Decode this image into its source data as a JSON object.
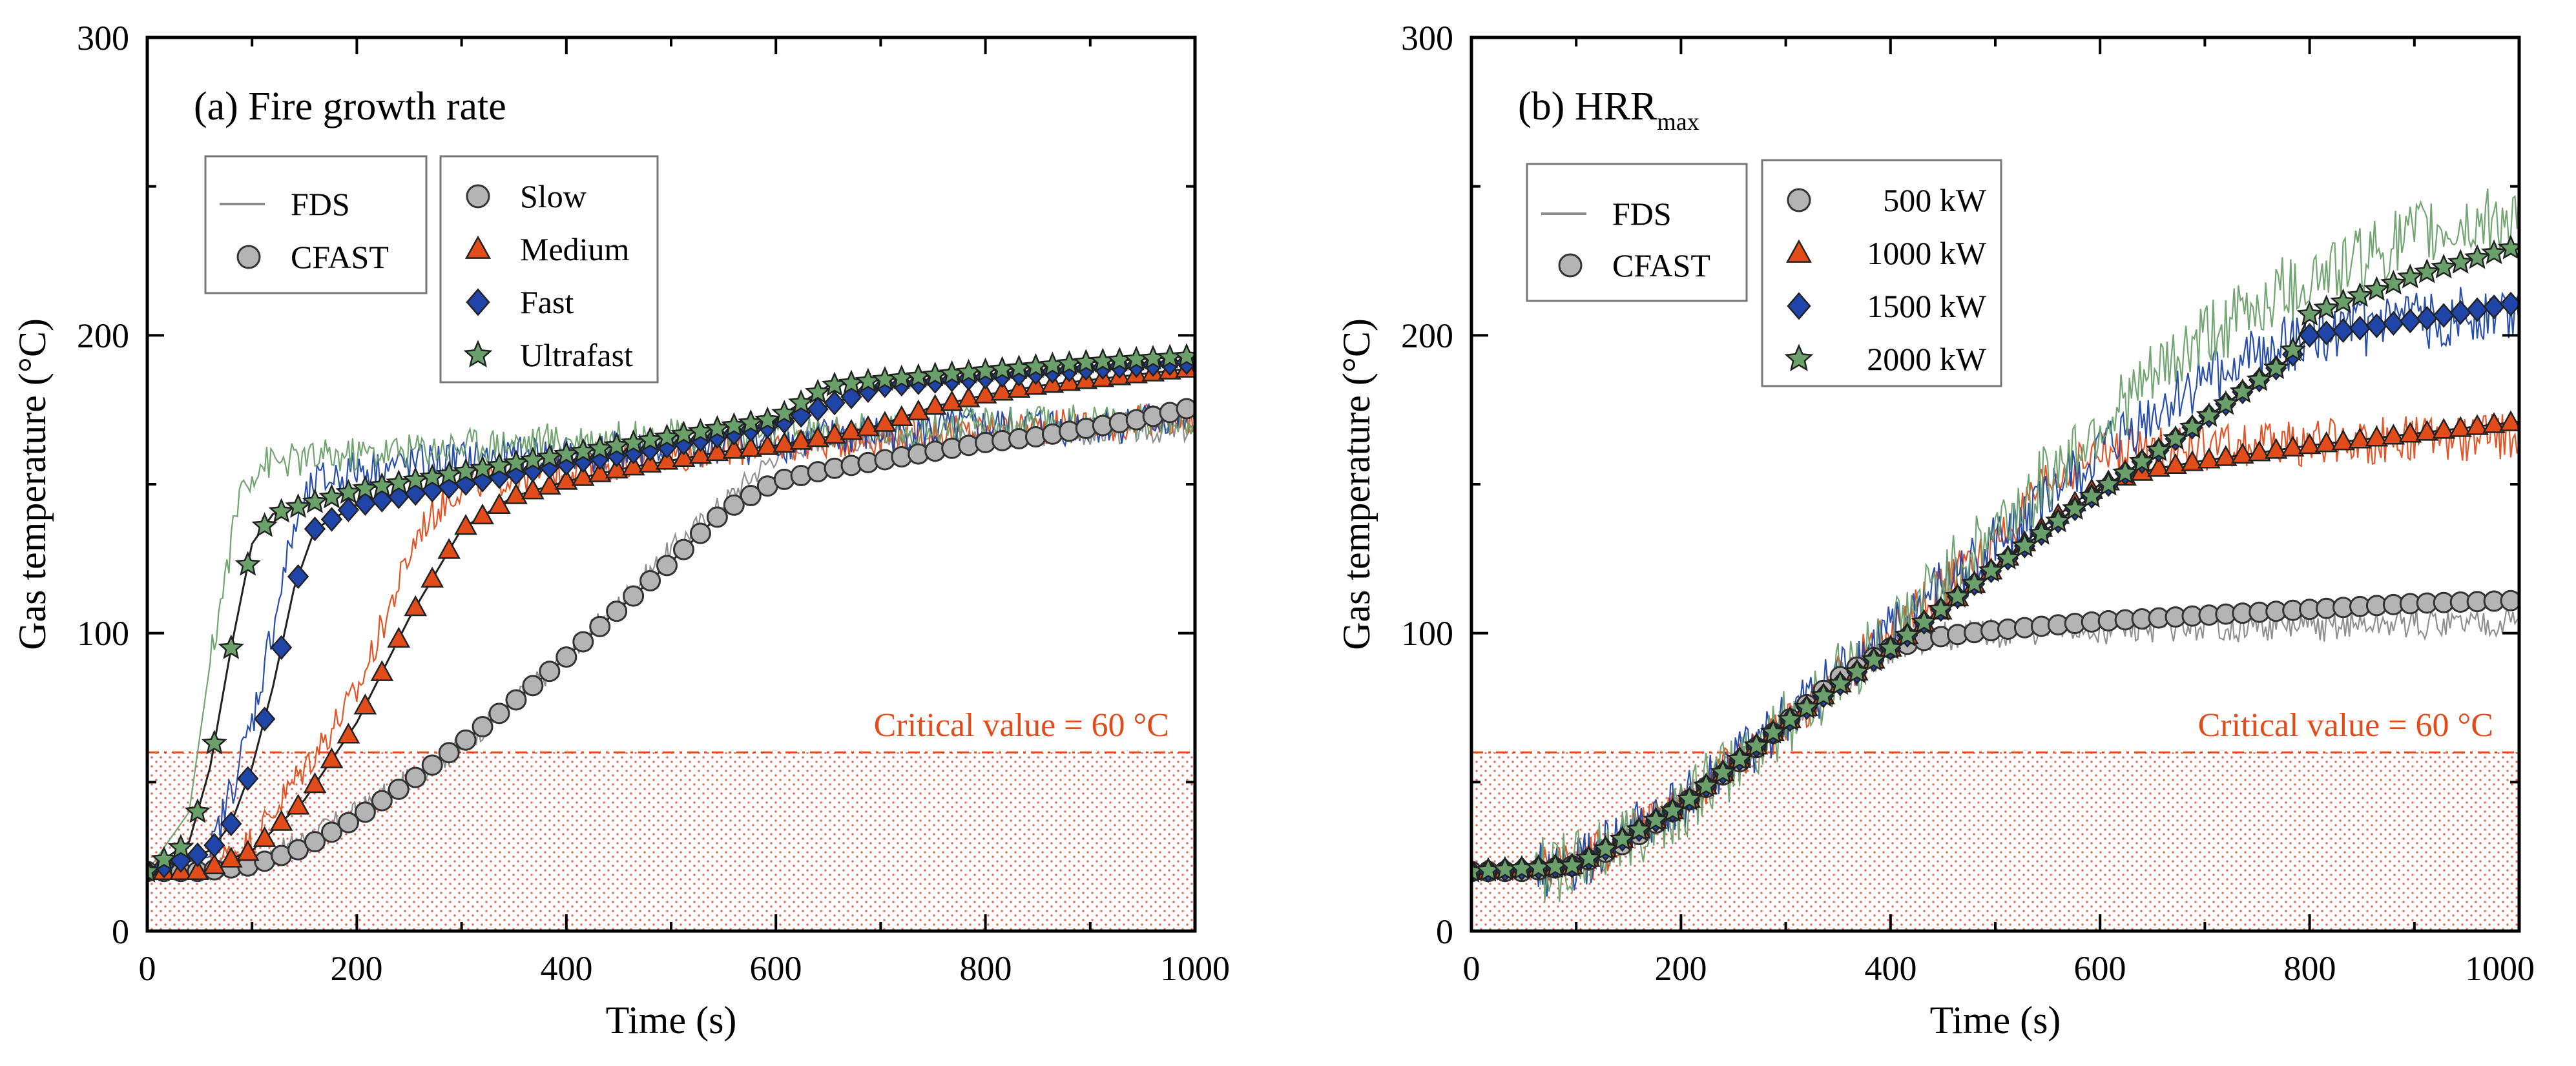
{
  "chart_data": [
    {
      "type": "line",
      "title": "(a) Fire growth rate",
      "xlabel": "Time (s)",
      "ylabel": "Gas temperature (°C)",
      "xlim": [
        0,
        1000
      ],
      "ylim": [
        0,
        300
      ],
      "xticks": [
        0,
        200,
        400,
        600,
        800,
        1000
      ],
      "yticks": [
        0,
        100,
        200,
        300
      ],
      "x_tick_labels": [
        "0",
        "200",
        "400",
        "600",
        "800",
        "1000"
      ],
      "y_tick_labels": [
        "0",
        "100",
        "200",
        "300"
      ],
      "critical_value": 60,
      "critical_label": "Critical value = 60 °C",
      "model_legend": [
        {
          "label": "FDS",
          "style": "line"
        },
        {
          "label": "CFAST",
          "style": "marker"
        }
      ],
      "series": [
        {
          "name": "Slow",
          "color": "#b4b4b4",
          "fds_color": "#8a8a8a",
          "marker": "circle",
          "noise": 4,
          "cfast_x": [
            0,
            50,
            100,
            150,
            200,
            250,
            300,
            350,
            400,
            450,
            500,
            550,
            600,
            650,
            700,
            750,
            800,
            850,
            900,
            950,
            1000
          ],
          "cfast_y": [
            20,
            20,
            22,
            28,
            38,
            50,
            63,
            77,
            92,
            108,
            124,
            141,
            151,
            155,
            158,
            161,
            164,
            166,
            169,
            172,
            176
          ],
          "fds_x": [
            0,
            100,
            200,
            300,
            400,
            500,
            600,
            640,
            700,
            800,
            900,
            1000
          ],
          "fds_y": [
            20,
            22,
            40,
            62,
            92,
            128,
            160,
            165,
            165,
            166,
            167,
            168
          ]
        },
        {
          "name": "Medium",
          "color": "#e24b1a",
          "fds_color": "#e24b1a",
          "marker": "triangle",
          "noise": 6,
          "cfast_x": [
            0,
            50,
            100,
            150,
            200,
            250,
            300,
            350,
            400,
            450,
            500,
            550,
            600,
            650,
            700,
            750,
            800,
            850,
            900,
            950,
            1000
          ],
          "cfast_y": [
            20,
            20,
            27,
            44,
            70,
            105,
            135,
            146,
            151,
            155,
            158,
            161,
            163,
            166,
            170,
            176,
            180,
            183,
            185,
            187,
            189
          ],
          "fds_x": [
            0,
            60,
            100,
            200,
            260,
            300,
            400,
            500,
            600,
            700,
            800,
            900,
            1000
          ],
          "fds_y": [
            20,
            22,
            30,
            80,
            135,
            150,
            155,
            160,
            163,
            166,
            168,
            170,
            172
          ]
        },
        {
          "name": "Fast",
          "color": "#1f45a8",
          "fds_color": "#1f45a8",
          "marker": "diamond",
          "noise": 7,
          "cfast_x": [
            0,
            60,
            80,
            100,
            120,
            140,
            160,
            200,
            300,
            400,
            500,
            600,
            700,
            800,
            900,
            1000
          ],
          "cfast_y": [
            20,
            27,
            36,
            55,
            82,
            115,
            135,
            143,
            150,
            157,
            163,
            170,
            183,
            186,
            189,
            191
          ],
          "fds_x": [
            0,
            60,
            100,
            140,
            160,
            200,
            300,
            400,
            500,
            600,
            700,
            800,
            900,
            1000
          ],
          "fds_y": [
            20,
            25,
            70,
            135,
            150,
            155,
            158,
            160,
            162,
            164,
            167,
            169,
            170,
            172
          ]
        },
        {
          "name": "Ultrafast",
          "color": "#6aa06a",
          "fds_color": "#6aa06a",
          "marker": "star",
          "noise": 6,
          "cfast_x": [
            0,
            40,
            60,
            80,
            100,
            120,
            200,
            300,
            400,
            500,
            600,
            650,
            700,
            800,
            900,
            1000
          ],
          "cfast_y": [
            20,
            30,
            55,
            95,
            130,
            140,
            148,
            154,
            160,
            166,
            172,
            183,
            185,
            188,
            191,
            193
          ],
          "fds_x": [
            0,
            40,
            60,
            90,
            110,
            200,
            300,
            400,
            500,
            600,
            700,
            800,
            900,
            1000
          ],
          "fds_y": [
            20,
            40,
            90,
            150,
            157,
            160,
            163,
            165,
            166,
            167,
            168,
            170,
            171,
            172
          ]
        }
      ]
    },
    {
      "type": "line",
      "title": "(b) HRR",
      "title_subscript": "max",
      "xlabel": "Time (s)",
      "ylabel": "Gas temperature (°C)",
      "xlim": [
        0,
        1000
      ],
      "ylim": [
        0,
        300
      ],
      "xticks": [
        0,
        200,
        400,
        600,
        800,
        1000
      ],
      "yticks": [
        0,
        100,
        200,
        300
      ],
      "x_tick_labels": [
        "0",
        "200",
        "400",
        "600",
        "800",
        "1000"
      ],
      "y_tick_labels": [
        "0",
        "100",
        "200",
        "300"
      ],
      "critical_value": 60,
      "critical_label": "Critical value = 60 °C",
      "model_legend": [
        {
          "label": "FDS",
          "style": "line"
        },
        {
          "label": "CFAST",
          "style": "marker"
        }
      ],
      "series": [
        {
          "name": "500 kW",
          "color": "#b4b4b4",
          "fds_color": "#8a8a8a",
          "marker": "circle",
          "noise": 5,
          "cfast_x": [
            0,
            50,
            100,
            150,
            200,
            250,
            300,
            350,
            400,
            450,
            500,
            600,
            700,
            800,
            900,
            1000
          ],
          "cfast_y": [
            20,
            20,
            22,
            30,
            42,
            55,
            70,
            85,
            95,
            99,
            101,
            104,
            106,
            108,
            110,
            111
          ],
          "fds_x": [
            0,
            100,
            200,
            300,
            400,
            450,
            500,
            600,
            700,
            800,
            900,
            1000
          ],
          "fds_y": [
            20,
            22,
            42,
            70,
            95,
            99,
            100,
            101,
            102,
            102,
            103,
            104
          ]
        },
        {
          "name": "1000 kW",
          "color": "#e24b1a",
          "fds_color": "#e24b1a",
          "marker": "triangle",
          "noise": 8,
          "cfast_x": [
            0,
            100,
            200,
            300,
            400,
            450,
            500,
            550,
            600,
            650,
            700,
            800,
            900,
            1000
          ],
          "cfast_y": [
            20,
            22,
            42,
            70,
            95,
            108,
            122,
            137,
            150,
            155,
            158,
            163,
            167,
            171
          ],
          "fds_x": [
            0,
            100,
            200,
            300,
            400,
            500,
            550,
            600,
            700,
            800,
            900,
            1000
          ],
          "fds_y": [
            20,
            22,
            42,
            70,
            100,
            130,
            150,
            160,
            162,
            164,
            165,
            166
          ]
        },
        {
          "name": "1500 kW",
          "color": "#1f45a8",
          "fds_color": "#1f45a8",
          "marker": "diamond",
          "noise": 10,
          "cfast_x": [
            0,
            100,
            200,
            300,
            400,
            500,
            600,
            700,
            780,
            800,
            900,
            1000
          ],
          "cfast_y": [
            20,
            22,
            42,
            70,
            95,
            122,
            148,
            172,
            192,
            200,
            205,
            211
          ],
          "fds_x": [
            0,
            100,
            200,
            300,
            400,
            500,
            600,
            700,
            800,
            900,
            1000
          ],
          "fds_y": [
            20,
            22,
            42,
            70,
            100,
            130,
            160,
            185,
            200,
            205,
            208
          ]
        },
        {
          "name": "2000 kW",
          "color": "#6aa06a",
          "fds_color": "#6aa06a",
          "marker": "star",
          "noise": 12,
          "cfast_x": [
            0,
            100,
            200,
            300,
            400,
            500,
            600,
            700,
            780,
            800,
            900,
            1000
          ],
          "cfast_y": [
            20,
            22,
            42,
            70,
            95,
            122,
            148,
            172,
            192,
            207,
            220,
            230
          ],
          "fds_x": [
            0,
            100,
            200,
            300,
            400,
            500,
            600,
            700,
            800,
            900,
            1000
          ],
          "fds_y": [
            20,
            22,
            42,
            70,
            100,
            135,
            170,
            200,
            220,
            233,
            240
          ]
        }
      ]
    }
  ]
}
